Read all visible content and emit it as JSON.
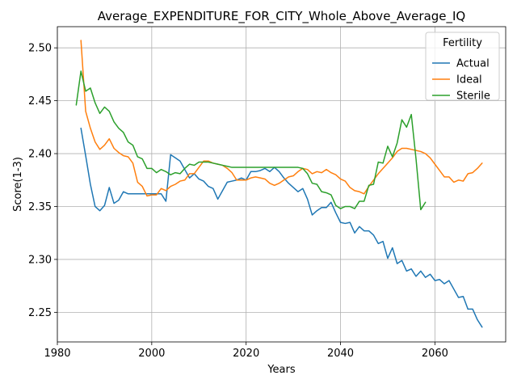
{
  "chart_data": {
    "type": "line",
    "title": "Average_EXPENDITURE_FOR_CITY_Whole_Above_Average_IQ",
    "xlabel": "Years",
    "ylabel": "Score(1-3)",
    "xlim": [
      1980,
      2075
    ],
    "ylim": [
      2.222,
      2.52
    ],
    "xticks": [
      1980,
      2000,
      2020,
      2040,
      2060
    ],
    "yticks": [
      2.25,
      2.3,
      2.35,
      2.4,
      2.45,
      2.5
    ],
    "xtick_labels": [
      "1980",
      "2000",
      "2020",
      "2040",
      "2060"
    ],
    "ytick_labels": [
      "2.25",
      "2.30",
      "2.35",
      "2.40",
      "2.45",
      "2.50"
    ],
    "grid": true,
    "legend": {
      "title": "Fertility",
      "placement": "top-right"
    },
    "series": [
      {
        "name": "Actual",
        "color": "#1f77b4",
        "x": [
          1985,
          1986,
          1987,
          1988,
          1989,
          1990,
          1991,
          1992,
          1993,
          1994,
          1995,
          1996,
          1997,
          1998,
          1999,
          2000,
          2001,
          2002,
          2003,
          2004,
          2005,
          2006,
          2007,
          2008,
          2009,
          2010,
          2011,
          2012,
          2013,
          2014,
          2015,
          2016,
          2017,
          2018,
          2019,
          2020,
          2021,
          2022,
          2023,
          2024,
          2025,
          2026,
          2027,
          2028,
          2029,
          2030,
          2031,
          2032,
          2033,
          2034,
          2035,
          2036,
          2037,
          2038,
          2039,
          2040,
          2041,
          2042,
          2043,
          2044,
          2045,
          2046,
          2047,
          2048,
          2049,
          2050,
          2051,
          2052,
          2053,
          2054,
          2055,
          2056,
          2057,
          2058,
          2059,
          2060,
          2061,
          2062,
          2063,
          2064,
          2065,
          2066,
          2067,
          2068,
          2069,
          2070
        ],
        "y": [
          2.424,
          2.398,
          2.371,
          2.35,
          2.346,
          2.351,
          2.368,
          2.353,
          2.356,
          2.364,
          2.362,
          2.362,
          2.362,
          2.362,
          2.362,
          2.362,
          2.362,
          2.362,
          2.355,
          2.399,
          2.396,
          2.393,
          2.385,
          2.377,
          2.381,
          2.376,
          2.374,
          2.369,
          2.367,
          2.357,
          2.365,
          2.373,
          2.374,
          2.375,
          2.377,
          2.375,
          2.383,
          2.383,
          2.384,
          2.386,
          2.383,
          2.387,
          2.383,
          2.377,
          2.372,
          2.368,
          2.364,
          2.367,
          2.357,
          2.342,
          2.346,
          2.349,
          2.349,
          2.354,
          2.344,
          2.335,
          2.334,
          2.335,
          2.325,
          2.331,
          2.327,
          2.327,
          2.323,
          2.315,
          2.317,
          2.301,
          2.311,
          2.296,
          2.299,
          2.289,
          2.291,
          2.284,
          2.289,
          2.283,
          2.286,
          2.28,
          2.281,
          2.277,
          2.28,
          2.272,
          2.264,
          2.265,
          2.253,
          2.253,
          2.243,
          2.236
        ]
      },
      {
        "name": "Ideal",
        "color": "#ff7f0e",
        "x": [
          1985,
          1986,
          1987,
          1988,
          1989,
          1990,
          1991,
          1992,
          1993,
          1994,
          1995,
          1996,
          1997,
          1998,
          1999,
          2000,
          2001,
          2002,
          2003,
          2004,
          2005,
          2006,
          2007,
          2008,
          2009,
          2010,
          2011,
          2012,
          2013,
          2014,
          2015,
          2016,
          2017,
          2018,
          2019,
          2020,
          2021,
          2022,
          2023,
          2024,
          2025,
          2026,
          2027,
          2028,
          2029,
          2030,
          2031,
          2032,
          2033,
          2034,
          2035,
          2036,
          2037,
          2038,
          2039,
          2040,
          2041,
          2042,
          2043,
          2044,
          2045,
          2046,
          2047,
          2048,
          2049,
          2050,
          2051,
          2052,
          2053,
          2054,
          2055,
          2056,
          2057,
          2058,
          2059,
          2060,
          2061,
          2062,
          2063,
          2064,
          2065,
          2066,
          2067,
          2068,
          2069,
          2070
        ],
        "y": [
          2.507,
          2.44,
          2.424,
          2.411,
          2.404,
          2.408,
          2.414,
          2.405,
          2.401,
          2.398,
          2.397,
          2.391,
          2.373,
          2.369,
          2.36,
          2.361,
          2.361,
          2.367,
          2.365,
          2.369,
          2.371,
          2.374,
          2.375,
          2.381,
          2.381,
          2.387,
          2.393,
          2.393,
          2.391,
          2.39,
          2.389,
          2.386,
          2.382,
          2.375,
          2.375,
          2.375,
          2.377,
          2.378,
          2.377,
          2.376,
          2.372,
          2.37,
          2.372,
          2.375,
          2.378,
          2.379,
          2.383,
          2.386,
          2.385,
          2.381,
          2.383,
          2.382,
          2.385,
          2.382,
          2.38,
          2.376,
          2.374,
          2.368,
          2.365,
          2.364,
          2.362,
          2.369,
          2.375,
          2.381,
          2.386,
          2.391,
          2.396,
          2.402,
          2.405,
          2.405,
          2.404,
          2.403,
          2.402,
          2.4,
          2.396,
          2.39,
          2.384,
          2.378,
          2.378,
          2.373,
          2.375,
          2.374,
          2.381,
          2.382,
          2.386,
          2.391
        ]
      },
      {
        "name": "Sterile",
        "color": "#2ca02c",
        "x": [
          1984,
          1985,
          1986,
          1987,
          1988,
          1989,
          1990,
          1991,
          1992,
          1993,
          1994,
          1995,
          1996,
          1997,
          1998,
          1999,
          2000,
          2001,
          2002,
          2003,
          2004,
          2005,
          2006,
          2007,
          2008,
          2009,
          2010,
          2011,
          2012,
          2013,
          2014,
          2015,
          2016,
          2017,
          2018,
          2019,
          2020,
          2021,
          2022,
          2023,
          2024,
          2025,
          2026,
          2027,
          2028,
          2029,
          2030,
          2031,
          2032,
          2033,
          2034,
          2035,
          2036,
          2037,
          2038,
          2039,
          2040,
          2041,
          2042,
          2043,
          2044,
          2045,
          2046,
          2047,
          2048,
          2049,
          2050,
          2051,
          2052,
          2053,
          2054,
          2055,
          2056,
          2057,
          2058
        ],
        "y": [
          2.446,
          2.478,
          2.459,
          2.462,
          2.448,
          2.438,
          2.444,
          2.44,
          2.43,
          2.424,
          2.42,
          2.411,
          2.408,
          2.397,
          2.395,
          2.386,
          2.386,
          2.382,
          2.385,
          2.383,
          2.38,
          2.382,
          2.381,
          2.386,
          2.39,
          2.389,
          2.392,
          2.392,
          2.392,
          2.391,
          2.39,
          2.389,
          2.388,
          2.387,
          2.387,
          2.387,
          2.387,
          2.387,
          2.387,
          2.387,
          2.387,
          2.387,
          2.387,
          2.387,
          2.387,
          2.387,
          2.387,
          2.387,
          2.386,
          2.381,
          2.372,
          2.371,
          2.364,
          2.363,
          2.361,
          2.351,
          2.348,
          2.35,
          2.35,
          2.348,
          2.355,
          2.355,
          2.37,
          2.371,
          2.392,
          2.391,
          2.407,
          2.397,
          2.41,
          2.432,
          2.425,
          2.437,
          2.395,
          2.347,
          2.354
        ]
      }
    ]
  }
}
